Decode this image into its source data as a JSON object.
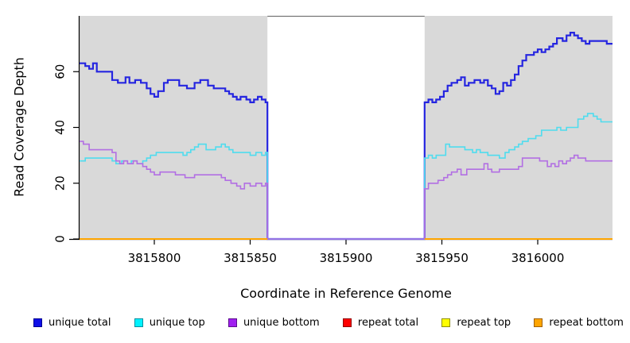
{
  "figure": {
    "background": "#ffffff"
  },
  "axes": {
    "x_title": "Coordinate in Reference Genome",
    "y_title": "Read Coverage Depth",
    "x_ticks": [
      3815800,
      3815850,
      3815900,
      3815950,
      3816000
    ],
    "y_ticks": [
      0,
      20,
      40,
      60
    ],
    "x_range": [
      3815761,
      3816039
    ],
    "y_range": [
      0,
      80
    ],
    "axis_color": "#000000"
  },
  "panel": {
    "background": "#d9d9d9",
    "gap_region": {
      "start": 3815859,
      "end": 3815941,
      "fill": "#ffffff",
      "top_border": "#757575"
    }
  },
  "legend": {
    "items": [
      {
        "label": "unique total",
        "fill": "#0f0fe8",
        "border": "#000090"
      },
      {
        "label": "unique top",
        "fill": "#00f2ff",
        "border": "#0090a0"
      },
      {
        "label": "unique bottom",
        "fill": "#a020f0",
        "border": "#5c0d8e"
      },
      {
        "label": "repeat total",
        "fill": "#ff0000",
        "border": "#900000"
      },
      {
        "label": "repeat top",
        "fill": "#ffff00",
        "border": "#909000"
      },
      {
        "label": "repeat bottom",
        "fill": "#ffa500",
        "border": "#a06000"
      }
    ]
  },
  "chart_data": {
    "type": "line",
    "subtype": "step-after",
    "xlabel": "Coordinate in Reference Genome",
    "ylabel": "Read Coverage Depth",
    "xlim": [
      3815761,
      3816039
    ],
    "ylim": [
      0,
      80
    ],
    "grid": false,
    "legend_position": "bottom",
    "no_data_region": [
      3815859,
      3815941
    ],
    "series": [
      {
        "name": "repeat total",
        "color": "#dd0000",
        "width": 2,
        "runs": [
          [
            [
              3815761,
              0
            ],
            [
              3815859,
              0
            ]
          ],
          [
            [
              3815941,
              0
            ],
            [
              3816039,
              0
            ]
          ]
        ]
      },
      {
        "name": "repeat top",
        "color": "#eeee00",
        "width": 2,
        "runs": [
          [
            [
              3815761,
              0
            ],
            [
              3815859,
              0
            ]
          ],
          [
            [
              3815941,
              0
            ],
            [
              3816039,
              0
            ]
          ]
        ]
      },
      {
        "name": "unique total",
        "color": "#2525e0",
        "width": 2.2,
        "runs": [
          [
            [
              3815761,
              63
            ],
            [
              3815764,
              62
            ],
            [
              3815766,
              61
            ],
            [
              3815768,
              63
            ],
            [
              3815770,
              60
            ],
            [
              3815778,
              57
            ],
            [
              3815781,
              56
            ],
            [
              3815785,
              58
            ],
            [
              3815787,
              56
            ],
            [
              3815790,
              57
            ],
            [
              3815793,
              56
            ],
            [
              3815796,
              54
            ],
            [
              3815798,
              52
            ],
            [
              3815800,
              51
            ],
            [
              3815802,
              53
            ],
            [
              3815805,
              56
            ],
            [
              3815807,
              57
            ],
            [
              3815813,
              55
            ],
            [
              3815817,
              54
            ],
            [
              3815821,
              56
            ],
            [
              3815824,
              57
            ],
            [
              3815828,
              55
            ],
            [
              3815831,
              54
            ],
            [
              3815837,
              53
            ],
            [
              3815839,
              52
            ],
            [
              3815841,
              51
            ],
            [
              3815843,
              50
            ],
            [
              3815845,
              51
            ],
            [
              3815848,
              50
            ],
            [
              3815850,
              49
            ],
            [
              3815852,
              50
            ],
            [
              3815854,
              51
            ],
            [
              3815856,
              50
            ],
            [
              3815858,
              49
            ],
            [
              3815859,
              0
            ],
            [
              3815941,
              49
            ],
            [
              3815943,
              50
            ],
            [
              3815945,
              49
            ],
            [
              3815947,
              50
            ],
            [
              3815949,
              51
            ],
            [
              3815951,
              53
            ],
            [
              3815953,
              55
            ],
            [
              3815955,
              56
            ],
            [
              3815958,
              57
            ],
            [
              3815960,
              58
            ],
            [
              3815962,
              55
            ],
            [
              3815964,
              56
            ],
            [
              3815967,
              57
            ],
            [
              3815970,
              56
            ],
            [
              3815972,
              57
            ],
            [
              3815974,
              55
            ],
            [
              3815976,
              54
            ],
            [
              3815978,
              52
            ],
            [
              3815980,
              53
            ],
            [
              3815982,
              56
            ],
            [
              3815984,
              55
            ],
            [
              3815986,
              57
            ],
            [
              3815988,
              59
            ],
            [
              3815990,
              62
            ],
            [
              3815992,
              64
            ],
            [
              3815994,
              66
            ],
            [
              3815998,
              67
            ],
            [
              3816000,
              68
            ],
            [
              3816002,
              67
            ],
            [
              3816004,
              68
            ],
            [
              3816006,
              69
            ],
            [
              3816008,
              70
            ],
            [
              3816010,
              72
            ],
            [
              3816013,
              71
            ],
            [
              3816015,
              73
            ],
            [
              3816017,
              74
            ],
            [
              3816019,
              73
            ],
            [
              3816021,
              72
            ],
            [
              3816023,
              71
            ],
            [
              3816025,
              70
            ],
            [
              3816027,
              71
            ],
            [
              3816036,
              70
            ],
            [
              3816039,
              70
            ]
          ]
        ]
      },
      {
        "name": "unique top",
        "color": "#4fdcee",
        "width": 1.6,
        "runs": [
          [
            [
              3815761,
              28
            ],
            [
              3815764,
              29
            ],
            [
              3815778,
              28
            ],
            [
              3815780,
              27
            ],
            [
              3815783,
              28
            ],
            [
              3815786,
              27
            ],
            [
              3815788,
              28
            ],
            [
              3815791,
              27
            ],
            [
              3815794,
              28
            ],
            [
              3815796,
              29
            ],
            [
              3815798,
              30
            ],
            [
              3815801,
              31
            ],
            [
              3815813,
              31
            ],
            [
              3815815,
              30
            ],
            [
              3815817,
              31
            ],
            [
              3815819,
              32
            ],
            [
              3815821,
              33
            ],
            [
              3815823,
              34
            ],
            [
              3815827,
              32
            ],
            [
              3815832,
              33
            ],
            [
              3815835,
              34
            ],
            [
              3815837,
              33
            ],
            [
              3815839,
              32
            ],
            [
              3815841,
              31
            ],
            [
              3815850,
              30
            ],
            [
              3815853,
              31
            ],
            [
              3815856,
              30
            ],
            [
              3815858,
              31
            ],
            [
              3815859,
              0
            ],
            [
              3815941,
              29
            ],
            [
              3815943,
              30
            ],
            [
              3815945,
              29
            ],
            [
              3815947,
              30
            ],
            [
              3815952,
              34
            ],
            [
              3815954,
              33
            ],
            [
              3815958,
              33
            ],
            [
              3815962,
              32
            ],
            [
              3815966,
              31
            ],
            [
              3815968,
              32
            ],
            [
              3815970,
              31
            ],
            [
              3815974,
              30
            ],
            [
              3815980,
              29
            ],
            [
              3815983,
              31
            ],
            [
              3815985,
              32
            ],
            [
              3815988,
              33
            ],
            [
              3815990,
              34
            ],
            [
              3815992,
              35
            ],
            [
              3815995,
              36
            ],
            [
              3815999,
              37
            ],
            [
              3816002,
              39
            ],
            [
              3816008,
              39
            ],
            [
              3816010,
              40
            ],
            [
              3816012,
              39
            ],
            [
              3816015,
              40
            ],
            [
              3816021,
              43
            ],
            [
              3816024,
              44
            ],
            [
              3816026,
              45
            ],
            [
              3816029,
              44
            ],
            [
              3816031,
              43
            ],
            [
              3816033,
              42
            ],
            [
              3816039,
              42
            ]
          ]
        ]
      },
      {
        "name": "unique bottom",
        "color": "#b26fe3",
        "width": 1.6,
        "runs": [
          [
            [
              3815761,
              35
            ],
            [
              3815763,
              34
            ],
            [
              3815766,
              32
            ],
            [
              3815778,
              31
            ],
            [
              3815780,
              28
            ],
            [
              3815782,
              27
            ],
            [
              3815784,
              28
            ],
            [
              3815786,
              27
            ],
            [
              3815789,
              28
            ],
            [
              3815791,
              27
            ],
            [
              3815794,
              26
            ],
            [
              3815796,
              25
            ],
            [
              3815798,
              24
            ],
            [
              3815800,
              23
            ],
            [
              3815803,
              24
            ],
            [
              3815811,
              23
            ],
            [
              3815816,
              22
            ],
            [
              3815821,
              23
            ],
            [
              3815831,
              23
            ],
            [
              3815835,
              22
            ],
            [
              3815837,
              21
            ],
            [
              3815840,
              20
            ],
            [
              3815843,
              19
            ],
            [
              3815845,
              18
            ],
            [
              3815847,
              20
            ],
            [
              3815850,
              19
            ],
            [
              3815853,
              20
            ],
            [
              3815856,
              19
            ],
            [
              3815858,
              20
            ],
            [
              3815859,
              0
            ],
            [
              3815941,
              18
            ],
            [
              3815943,
              20
            ],
            [
              3815948,
              21
            ],
            [
              3815951,
              22
            ],
            [
              3815953,
              23
            ],
            [
              3815955,
              24
            ],
            [
              3815958,
              25
            ],
            [
              3815960,
              23
            ],
            [
              3815963,
              25
            ],
            [
              3815972,
              27
            ],
            [
              3815974,
              25
            ],
            [
              3815976,
              24
            ],
            [
              3815980,
              25
            ],
            [
              3815990,
              26
            ],
            [
              3815992,
              29
            ],
            [
              3816001,
              28
            ],
            [
              3816005,
              26
            ],
            [
              3816007,
              27
            ],
            [
              3816009,
              26
            ],
            [
              3816011,
              28
            ],
            [
              3816013,
              27
            ],
            [
              3816015,
              28
            ],
            [
              3816017,
              29
            ],
            [
              3816019,
              30
            ],
            [
              3816021,
              29
            ],
            [
              3816025,
              28
            ],
            [
              3816039,
              28
            ]
          ]
        ]
      },
      {
        "name": "repeat bottom",
        "color": "#ffa500",
        "width": 2,
        "runs": [
          [
            [
              3815761,
              0
            ],
            [
              3815859,
              0
            ]
          ],
          [
            [
              3815941,
              0
            ],
            [
              3816039,
              0
            ]
          ]
        ]
      }
    ]
  }
}
